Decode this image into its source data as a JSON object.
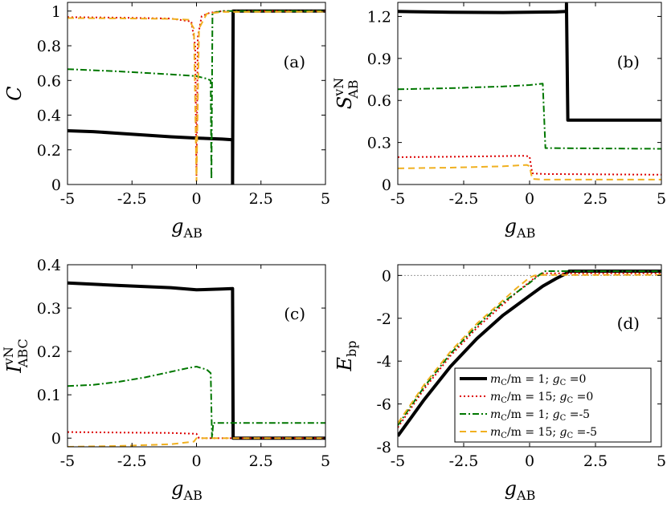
{
  "chart_data": [
    {
      "type": "line",
      "panel_label": "(a)",
      "ylabel": "C",
      "xlabel_main": "g",
      "xlabel_sub": "AB",
      "xlim": [
        -5,
        5
      ],
      "ylim": [
        0,
        1.05
      ],
      "xticks": [
        -5,
        -2.5,
        0,
        2.5,
        5
      ],
      "xtick_labels": [
        "-5",
        "-2.5",
        "0",
        "2.5",
        "5"
      ],
      "yticks": [
        0,
        0.2,
        0.4,
        0.6,
        0.8,
        1
      ],
      "ytick_labels": [
        "0",
        "0.2",
        "0.4",
        "0.6",
        "0.8",
        "1"
      ],
      "series": [
        {
          "name": "mC/m = 1; gC = 0",
          "color": "#000000",
          "style": "solid",
          "points": [
            [
              -5,
              0.31
            ],
            [
              -4,
              0.305
            ],
            [
              -3,
              0.295
            ],
            [
              -2,
              0.285
            ],
            [
              -1,
              0.275
            ],
            [
              0,
              0.268
            ],
            [
              1,
              0.262
            ],
            [
              1.4,
              0.258
            ],
            [
              1.4,
              0
            ],
            [
              1.42,
              1.0
            ],
            [
              5,
              1.0
            ]
          ]
        },
        {
          "name": "mC/m = 15; gC = 0",
          "color": "#dd0000",
          "style": "dotted",
          "points": [
            [
              -5,
              0.965
            ],
            [
              -3,
              0.962
            ],
            [
              -1,
              0.957
            ],
            [
              -0.2,
              0.94
            ],
            [
              -0.05,
              0.8
            ],
            [
              0,
              0.05
            ],
            [
              0.05,
              0.85
            ],
            [
              0.2,
              0.97
            ],
            [
              0.5,
              0.99
            ],
            [
              1,
              1.0
            ],
            [
              5,
              1.0
            ]
          ]
        },
        {
          "name": "mC/m = 1; gC = -5",
          "color": "#007700",
          "style": "dashdot",
          "points": [
            [
              -5,
              0.665
            ],
            [
              -3,
              0.652
            ],
            [
              -1,
              0.635
            ],
            [
              0,
              0.625
            ],
            [
              0.4,
              0.61
            ],
            [
              0.55,
              0.6
            ],
            [
              0.58,
              0.03
            ],
            [
              0.62,
              0.99
            ],
            [
              1,
              1.0
            ],
            [
              5,
              1.0
            ]
          ]
        },
        {
          "name": "mC/m = 15; gC = -5",
          "color": "#f0b020",
          "style": "dashed",
          "points": [
            [
              -5,
              0.96
            ],
            [
              -3,
              0.958
            ],
            [
              -1,
              0.955
            ],
            [
              -0.3,
              0.95
            ],
            [
              -0.1,
              0.9
            ],
            [
              0,
              0.02
            ],
            [
              0.1,
              0.9
            ],
            [
              0.4,
              0.985
            ],
            [
              1,
              0.995
            ],
            [
              5,
              0.997
            ]
          ]
        }
      ]
    },
    {
      "type": "line",
      "panel_label": "(b)",
      "ylabel": "S",
      "ylabel_sup": "vN",
      "ylabel_sub": "AB",
      "xlabel_main": "g",
      "xlabel_sub": "AB",
      "xlim": [
        -5,
        5
      ],
      "ylim": [
        0,
        1.3
      ],
      "xticks": [
        -5,
        -2.5,
        0,
        2.5,
        5
      ],
      "xtick_labels": [
        "-5",
        "-2.5",
        "0",
        "2.5",
        "5"
      ],
      "yticks": [
        0,
        0.3,
        0.6,
        0.9,
        1.2
      ],
      "ytick_labels": [
        "0",
        "0.3",
        "0.6",
        "0.9",
        "1.2"
      ],
      "series": [
        {
          "name": "mC/m = 1; gC = 0",
          "color": "#000000",
          "style": "solid",
          "points": [
            [
              -5,
              1.235
            ],
            [
              -3,
              1.23
            ],
            [
              -1,
              1.228
            ],
            [
              1,
              1.232
            ],
            [
              1.4,
              1.235
            ],
            [
              1.4,
              1.29
            ],
            [
              1.45,
              0.46
            ],
            [
              5,
              0.46
            ]
          ]
        },
        {
          "name": "mC/m = 15; gC = 0",
          "color": "#dd0000",
          "style": "dotted",
          "points": [
            [
              -5,
              0.195
            ],
            [
              -3,
              0.198
            ],
            [
              -1,
              0.203
            ],
            [
              -0.2,
              0.205
            ],
            [
              0,
              0.2
            ],
            [
              0.1,
              0.08
            ],
            [
              0.5,
              0.075
            ],
            [
              5,
              0.07
            ]
          ]
        },
        {
          "name": "mC/m = 1; gC = -5",
          "color": "#007700",
          "style": "dashdot",
          "points": [
            [
              -5,
              0.68
            ],
            [
              -3,
              0.688
            ],
            [
              -1,
              0.7
            ],
            [
              0,
              0.71
            ],
            [
              0.5,
              0.72
            ],
            [
              0.6,
              0.26
            ],
            [
              5,
              0.255
            ]
          ]
        },
        {
          "name": "mC/m = 15; gC = -5",
          "color": "#f0b020",
          "style": "dashed",
          "points": [
            [
              -5,
              0.115
            ],
            [
              -3,
              0.12
            ],
            [
              -1,
              0.13
            ],
            [
              -0.1,
              0.14
            ],
            [
              0,
              0.13
            ],
            [
              0.1,
              0.04
            ],
            [
              0.5,
              0.035
            ],
            [
              5,
              0.035
            ]
          ]
        }
      ]
    },
    {
      "type": "line",
      "panel_label": "(c)",
      "ylabel": "I",
      "ylabel_sup": "vN",
      "ylabel_sub": "ABC",
      "xlabel_main": "g",
      "xlabel_sub": "AB",
      "xlim": [
        -5,
        5
      ],
      "ylim": [
        -0.02,
        0.4
      ],
      "xticks": [
        -5,
        -2.5,
        0,
        2.5,
        5
      ],
      "xtick_labels": [
        "-5",
        "-2.5",
        "0",
        "2.5",
        "5"
      ],
      "yticks": [
        0,
        0.1,
        0.2,
        0.3,
        0.4
      ],
      "ytick_labels": [
        "0",
        "0.1",
        "0.2",
        "0.3",
        "0.4"
      ],
      "series": [
        {
          "name": "mC/m = 1; gC = 0",
          "color": "#000000",
          "style": "solid",
          "points": [
            [
              -5,
              0.358
            ],
            [
              -3,
              0.352
            ],
            [
              -1,
              0.347
            ],
            [
              0,
              0.342
            ],
            [
              1,
              0.344
            ],
            [
              1.4,
              0.345
            ],
            [
              1.42,
              0.0
            ],
            [
              5,
              0.0
            ]
          ]
        },
        {
          "name": "mC/m = 15; gC = 0",
          "color": "#dd0000",
          "style": "dotted",
          "points": [
            [
              -5,
              0.014
            ],
            [
              -3,
              0.013
            ],
            [
              -1,
              0.012
            ],
            [
              0,
              0.01
            ],
            [
              0.1,
              0.0
            ],
            [
              5,
              0.0
            ]
          ]
        },
        {
          "name": "mC/m = 1; gC = -5",
          "color": "#007700",
          "style": "dashdot",
          "points": [
            [
              -5,
              0.12
            ],
            [
              -4,
              0.123
            ],
            [
              -3,
              0.13
            ],
            [
              -2,
              0.14
            ],
            [
              -1,
              0.153
            ],
            [
              -0.3,
              0.162
            ],
            [
              0,
              0.165
            ],
            [
              0.4,
              0.158
            ],
            [
              0.55,
              0.15
            ],
            [
              0.6,
              0.0
            ],
            [
              0.65,
              0.035
            ],
            [
              5,
              0.035
            ]
          ]
        },
        {
          "name": "mC/m = 15; gC = -5",
          "color": "#f0b020",
          "style": "dashed",
          "points": [
            [
              -5,
              -0.02
            ],
            [
              -3,
              -0.018
            ],
            [
              -1,
              -0.014
            ],
            [
              -0.1,
              -0.008
            ],
            [
              0,
              0.0
            ],
            [
              5,
              0.0
            ]
          ]
        }
      ]
    },
    {
      "type": "line",
      "panel_label": "(d)",
      "ylabel": "E",
      "ylabel_sub": "bp",
      "xlabel_main": "g",
      "xlabel_sub": "AB",
      "xlim": [
        -5,
        5
      ],
      "ylim": [
        -8,
        0.5
      ],
      "xticks": [
        -5,
        -2.5,
        0,
        2.5,
        5
      ],
      "xtick_labels": [
        "-5",
        "-2.5",
        "0",
        "2.5",
        "5"
      ],
      "yticks": [
        -8,
        -6,
        -4,
        -2,
        0
      ],
      "ytick_labels": [
        "-8",
        "-6",
        "-4",
        "-2",
        "0"
      ],
      "reference_line": 0,
      "legend": [
        {
          "line": "solid",
          "color": "#000000",
          "lhs": "m",
          "lhs_sub": "C",
          "mid": "/m = 1; ",
          "rhs": "g",
          "rhs_sub": "C",
          "value": " =0"
        },
        {
          "line": "dotted",
          "color": "#dd0000",
          "lhs": "m",
          "lhs_sub": "C",
          "mid": "/m = 15; ",
          "rhs": "g",
          "rhs_sub": "C",
          "value": " =0"
        },
        {
          "line": "dashdot",
          "color": "#007700",
          "lhs": "m",
          "lhs_sub": "C",
          "mid": "/m = 1; ",
          "rhs": "g",
          "rhs_sub": "C",
          "value": " =-5"
        },
        {
          "line": "dashed",
          "color": "#f0b020",
          "lhs": "m",
          "lhs_sub": "C",
          "mid": "/m = 15; ",
          "rhs": "g",
          "rhs_sub": "C",
          "value": " =-5"
        }
      ],
      "series": [
        {
          "name": "mC/m = 1; gC = 0",
          "color": "#000000",
          "style": "solid",
          "points": [
            [
              -5,
              -7.5
            ],
            [
              -4,
              -5.8
            ],
            [
              -3,
              -4.25
            ],
            [
              -2,
              -2.95
            ],
            [
              -1,
              -1.85
            ],
            [
              0,
              -0.95
            ],
            [
              0.5,
              -0.5
            ],
            [
              1,
              -0.15
            ],
            [
              1.4,
              0.1
            ],
            [
              1.5,
              0.2
            ],
            [
              5,
              0.2
            ]
          ]
        },
        {
          "name": "mC/m = 15; gC = 0",
          "color": "#dd0000",
          "style": "dotted",
          "points": [
            [
              -5,
              -7.1
            ],
            [
              -4,
              -5.3
            ],
            [
              -3,
              -3.75
            ],
            [
              -2,
              -2.45
            ],
            [
              -1,
              -1.35
            ],
            [
              -0.5,
              -0.8
            ],
            [
              0,
              -0.3
            ],
            [
              0.3,
              0.0
            ],
            [
              0.5,
              0.1
            ],
            [
              5,
              0.1
            ]
          ]
        },
        {
          "name": "mC/m = 1; gC = -5",
          "color": "#007700",
          "style": "dashdot",
          "points": [
            [
              -5,
              -7.0
            ],
            [
              -4,
              -5.2
            ],
            [
              -3,
              -3.65
            ],
            [
              -2,
              -2.35
            ],
            [
              -1,
              -1.25
            ],
            [
              0,
              -0.35
            ],
            [
              0.4,
              0.05
            ],
            [
              0.6,
              0.2
            ],
            [
              5,
              0.2
            ]
          ]
        },
        {
          "name": "mC/m = 15; gC = -5",
          "color": "#f0b020",
          "style": "dashed",
          "points": [
            [
              -5,
              -6.9
            ],
            [
              -4,
              -5.1
            ],
            [
              -3,
              -3.55
            ],
            [
              -2,
              -2.25
            ],
            [
              -1,
              -1.15
            ],
            [
              -0.5,
              -0.6
            ],
            [
              0,
              -0.1
            ],
            [
              0.2,
              0.0
            ],
            [
              0.5,
              0.02
            ],
            [
              5,
              0.03
            ]
          ]
        }
      ]
    }
  ]
}
